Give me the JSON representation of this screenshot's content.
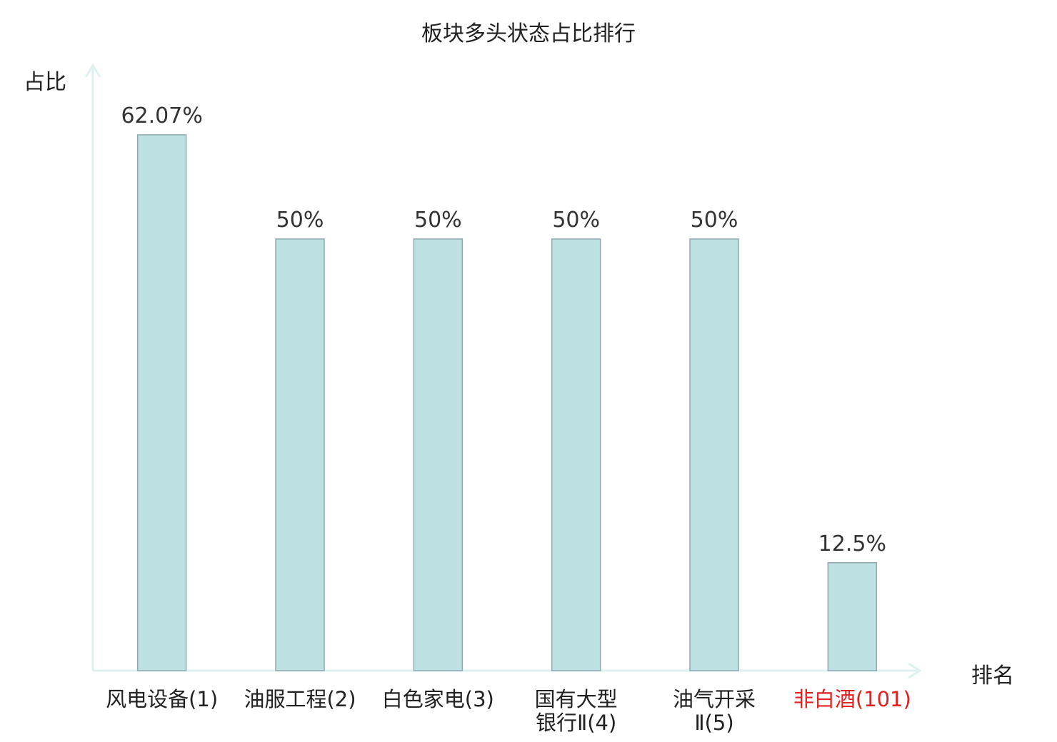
{
  "chart_data": {
    "type": "bar",
    "title": "板块多头状态占比排行",
    "ylabel": "占比",
    "xlabel": "排名",
    "categories": [
      "风电设备(1)",
      "油服工程(2)",
      "白色家电(3)",
      "国有大型\n银行Ⅱ(4)",
      "油气开采\nⅡ(5)",
      "非白酒(101)"
    ],
    "values": [
      62.07,
      50,
      50,
      50,
      50,
      12.5
    ],
    "value_labels": [
      "62.07%",
      "50%",
      "50%",
      "50%",
      "50%",
      "12.5%"
    ],
    "highlight_index": 5,
    "ylim": [
      0,
      70
    ],
    "grid": false,
    "colors": {
      "bar_fill": "#bde0e3",
      "bar_stroke": "#8fa9ad",
      "axis": "#dff1ef",
      "highlight_text": "#e02020"
    }
  }
}
